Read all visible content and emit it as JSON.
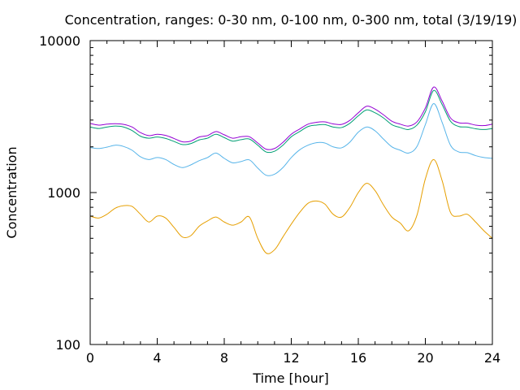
{
  "chart_data": {
    "type": "line",
    "title": "Concentration, ranges: 0-30 nm, 0-100 nm, 0-300 nm, total (3/19/19)",
    "xlabel": "Time [hour]",
    "ylabel": "Concentration",
    "xlim": [
      0,
      24
    ],
    "ylim": [
      100,
      10000
    ],
    "yscale": "log",
    "xticks": [
      0,
      4,
      8,
      12,
      16,
      20,
      24
    ],
    "yticks": [
      100,
      1000,
      10000
    ],
    "grid": false,
    "legend": "none",
    "x": [
      0,
      0.5,
      1,
      1.5,
      2,
      2.5,
      3,
      3.5,
      4,
      4.5,
      5,
      5.5,
      6,
      6.5,
      7,
      7.5,
      8,
      8.5,
      9,
      9.5,
      10,
      10.5,
      11,
      11.5,
      12,
      12.5,
      13,
      13.5,
      14,
      14.5,
      15,
      15.5,
      16,
      16.5,
      17,
      17.5,
      18,
      18.5,
      19,
      19.5,
      20,
      20.5,
      21,
      21.5,
      22,
      22.5,
      23,
      23.5,
      24
    ],
    "series": [
      {
        "color": "#e69f00",
        "values": [
          700,
          680,
          720,
          790,
          820,
          810,
          720,
          640,
          700,
          680,
          590,
          510,
          520,
          600,
          650,
          690,
          640,
          610,
          640,
          690,
          500,
          400,
          420,
          510,
          620,
          740,
          850,
          880,
          840,
          720,
          690,
          800,
          1000,
          1150,
          1030,
          830,
          690,
          630,
          560,
          710,
          1230,
          1650,
          1200,
          740,
          700,
          720,
          640,
          560,
          500
        ]
      },
      {
        "color": "#56b4e9",
        "values": [
          1980,
          1950,
          1990,
          2050,
          2010,
          1900,
          1720,
          1650,
          1700,
          1650,
          1530,
          1460,
          1520,
          1620,
          1700,
          1820,
          1680,
          1570,
          1600,
          1640,
          1450,
          1300,
          1320,
          1460,
          1700,
          1910,
          2050,
          2130,
          2120,
          2000,
          1970,
          2150,
          2500,
          2700,
          2550,
          2250,
          2000,
          1900,
          1820,
          2010,
          2800,
          3850,
          2900,
          2050,
          1850,
          1830,
          1750,
          1700,
          1680
        ]
      },
      {
        "color": "#009e73",
        "values": [
          2700,
          2640,
          2700,
          2740,
          2700,
          2560,
          2350,
          2280,
          2320,
          2270,
          2170,
          2070,
          2100,
          2220,
          2280,
          2420,
          2300,
          2180,
          2230,
          2250,
          2050,
          1850,
          1870,
          2050,
          2330,
          2520,
          2720,
          2780,
          2800,
          2700,
          2680,
          2860,
          3200,
          3500,
          3350,
          3100,
          2800,
          2680,
          2600,
          2780,
          3400,
          4700,
          3800,
          2950,
          2720,
          2700,
          2630,
          2600,
          2640
        ]
      },
      {
        "color": "#9400d3",
        "values": [
          2850,
          2780,
          2820,
          2840,
          2810,
          2700,
          2480,
          2370,
          2420,
          2380,
          2270,
          2160,
          2180,
          2320,
          2370,
          2520,
          2400,
          2280,
          2330,
          2330,
          2120,
          1930,
          1950,
          2140,
          2420,
          2620,
          2820,
          2900,
          2920,
          2830,
          2810,
          2990,
          3350,
          3700,
          3540,
          3250,
          2950,
          2820,
          2740,
          2920,
          3600,
          4950,
          4000,
          3100,
          2880,
          2860,
          2780,
          2760,
          2820
        ]
      }
    ]
  }
}
